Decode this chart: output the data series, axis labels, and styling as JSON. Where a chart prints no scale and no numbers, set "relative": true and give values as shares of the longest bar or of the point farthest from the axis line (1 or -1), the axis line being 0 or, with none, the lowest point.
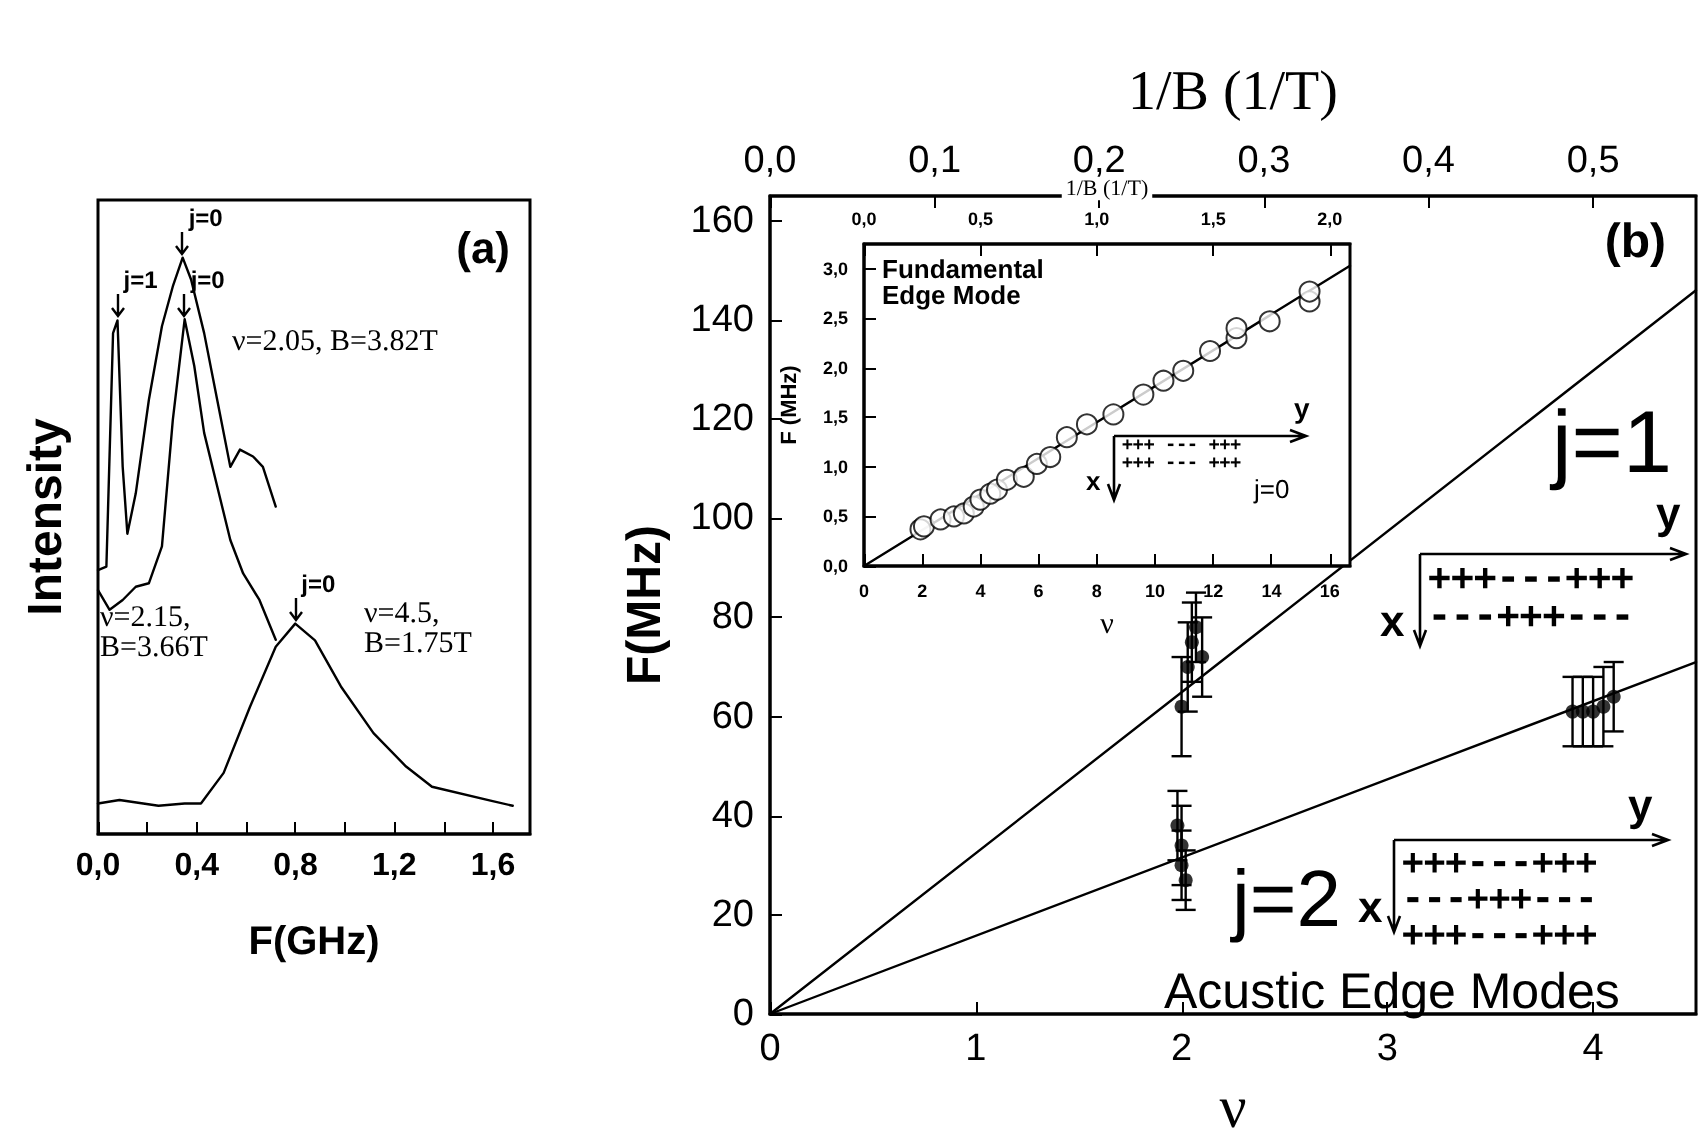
{
  "chart_data": [
    {
      "type": "line",
      "title": "(a)",
      "xlabel": "F(GHz)",
      "ylabel": "Intensity",
      "relative": true,
      "tick_labels": "x",
      "line_style": "solid",
      "xlim": [
        0,
        1.75
      ],
      "xticks": [
        {
          "value": 0,
          "label": "0,0"
        },
        {
          "value": 0.2,
          "label": null
        },
        {
          "value": 0.4,
          "label": "0,4"
        },
        {
          "value": 0.6,
          "label": null
        },
        {
          "value": 0.8,
          "label": "0,8"
        },
        {
          "value": 1.0,
          "label": null
        },
        {
          "value": 1.2,
          "label": "1,2"
        },
        {
          "value": 1.4,
          "label": null
        },
        {
          "value": 1.6,
          "label": "1,6"
        }
      ],
      "series": [
        {
          "color": "#000000",
          "x": [
            0,
            0.034,
            0.061,
            0.079,
            0.1,
            0.119,
            0.153,
            0.206,
            0.259,
            0.303,
            0.343,
            0.377,
            0.43,
            0.483,
            0.536,
            0.575,
            0.628,
            0.668,
            0.72
          ],
          "values": [
            0.458,
            0.464,
            0.869,
            0.891,
            0.637,
            0.521,
            0.591,
            0.753,
            0.881,
            0.95,
            1,
            0.962,
            0.869,
            0.753,
            0.637,
            0.667,
            0.655,
            0.637,
            0.568
          ]
        },
        {
          "color": "#000000",
          "x": [
            0,
            0.047,
            0.1,
            0.153,
            0.206,
            0.259,
            0.303,
            0.351,
            0.39,
            0.43,
            0.483,
            0.536,
            0.588,
            0.654,
            0.72
          ],
          "values": [
            0.423,
            0.389,
            0.406,
            0.429,
            0.435,
            0.499,
            0.718,
            0.893,
            0.812,
            0.696,
            0.603,
            0.51,
            0.452,
            0.406,
            0.337
          ]
        },
        {
          "color": "#000000",
          "x": [
            0,
            0.087,
            0.245,
            0.351,
            0.417,
            0.509,
            0.615,
            0.72,
            0.799,
            0.879,
            0.984,
            1.116,
            1.248,
            1.353,
            1.59,
            1.68
          ],
          "values": [
            0.053,
            0.059,
            0.049,
            0.053,
            0.053,
            0.106,
            0.22,
            0.325,
            0.365,
            0.336,
            0.256,
            0.175,
            0.117,
            0.082,
            0.058,
            0.049
          ]
        }
      ],
      "annotations": [
        {
          "text": "j=1",
          "x": 0.079,
          "y": 0.891
        },
        {
          "text": "j=0",
          "x": 0.343,
          "y": 1
        },
        {
          "text": "j=0",
          "x": 0.351,
          "y": 0.893
        },
        {
          "text": "j=0",
          "x": 0.799,
          "y": 0.365
        },
        "ν=2.05, B=3.82T",
        "ν=2.15,\nB=3.66T",
        "ν=4.5,\nB=1.75T"
      ]
    },
    {
      "type": "scatter",
      "title": "(b)",
      "xlabel": "ν",
      "ylabel": "F(MHz)",
      "x2label": "1/B (1/T)",
      "marker": "circle",
      "line_style": "solid",
      "xlim": [
        0,
        4.5
      ],
      "xticks": [
        0,
        1,
        2,
        3,
        4
      ],
      "x2lim": [
        0,
        0.5625
      ],
      "x2ticks": [
        {
          "value": 0,
          "label": "0,0"
        },
        {
          "value": 0.1,
          "label": "0,1"
        },
        {
          "value": 0.2,
          "label": "0,2"
        },
        {
          "value": 0.3,
          "label": "0,3"
        },
        {
          "value": 0.4,
          "label": "0,4"
        },
        {
          "value": 0.5,
          "label": "0,5"
        }
      ],
      "ylim": [
        0,
        165
      ],
      "yticks": [
        0,
        20,
        40,
        60,
        80,
        100,
        120,
        140,
        160
      ],
      "series": [
        {
          "type": "line",
          "marker": "none",
          "color": "#000000",
          "x": [
            0,
            4.5
          ],
          "values": [
            0,
            146
          ]
        },
        {
          "type": "line",
          "marker": "none",
          "color": "#000000",
          "x": [
            0,
            4.5
          ],
          "values": [
            0,
            71
          ]
        },
        {
          "type": "scatter",
          "color": "#000000",
          "x": [
            2.0,
            2.03,
            2.05,
            2.07,
            2.1,
            1.98,
            2.0,
            2.0,
            2.02,
            3.9,
            3.95,
            4.0,
            4.05,
            4.1
          ],
          "values": [
            62,
            70,
            75,
            78,
            72,
            38,
            34,
            30,
            27,
            61,
            61,
            61,
            62,
            64
          ],
          "errors": [
            10,
            9,
            8,
            7,
            8,
            7,
            8,
            7,
            6,
            7,
            7,
            7,
            8,
            7
          ]
        }
      ],
      "annotations": [
        "j=1",
        "j=2",
        "y",
        "+++---+++\n---+++---",
        "x",
        "y",
        "+++---+++\n---+++---\n+++---+++",
        "x",
        "Acustic Edge Modes"
      ]
    },
    {
      "type": "scatter",
      "xlabel": "ν",
      "ylabel": "F (MHz)",
      "x2label": "1/B (1/T)",
      "marker": "circle",
      "line_style": "solid",
      "xlim": [
        0,
        16.7
      ],
      "xticks": [
        0,
        2,
        4,
        6,
        8,
        10,
        12,
        14,
        16
      ],
      "x2lim": [
        0,
        2.0875
      ],
      "x2ticks": [
        {
          "value": 0,
          "label": "0,0"
        },
        {
          "value": 0.5,
          "label": "0,5"
        },
        {
          "value": 1.0,
          "label": "1,0"
        },
        {
          "value": 1.5,
          "label": "1,5"
        },
        {
          "value": 2.0,
          "label": "2,0"
        }
      ],
      "ylim": [
        0,
        3.25
      ],
      "yticks": [
        {
          "value": 0,
          "label": "0,0"
        },
        {
          "value": 0.5,
          "label": "0,5"
        },
        {
          "value": 1.0,
          "label": "1,0"
        },
        {
          "value": 1.5,
          "label": "1,5"
        },
        {
          "value": 2.0,
          "label": "2,0"
        },
        {
          "value": 2.5,
          "label": "2,5"
        },
        {
          "value": 3.0,
          "label": "3,0"
        }
      ],
      "series": [
        {
          "type": "line",
          "marker": "none",
          "color": "#000000",
          "x": [
            0,
            16.7
          ],
          "values": [
            0,
            3.03
          ]
        },
        {
          "type": "scatter",
          "color": "#000000",
          "x": [
            1.94,
            2.06,
            2.63,
            3.09,
            3.43,
            3.77,
            4.0,
            4.34,
            4.57,
            4.91,
            5.49,
            5.94,
            6.4,
            6.97,
            7.66,
            8.57,
            9.6,
            10.29,
            10.97,
            11.89,
            12.8,
            12.8,
            13.94,
            15.31,
            15.31
          ],
          "values": [
            0.37,
            0.4,
            0.47,
            0.5,
            0.53,
            0.6,
            0.67,
            0.73,
            0.77,
            0.87,
            0.9,
            1.03,
            1.1,
            1.3,
            1.43,
            1.53,
            1.73,
            1.87,
            1.97,
            2.17,
            2.3,
            2.4,
            2.47,
            2.67,
            2.77
          ]
        }
      ],
      "annotations": [
        "Fundamental\nEdge Mode",
        "y",
        "+++ --- +++\n+++ --- +++",
        "x",
        "j=0"
      ]
    }
  ]
}
